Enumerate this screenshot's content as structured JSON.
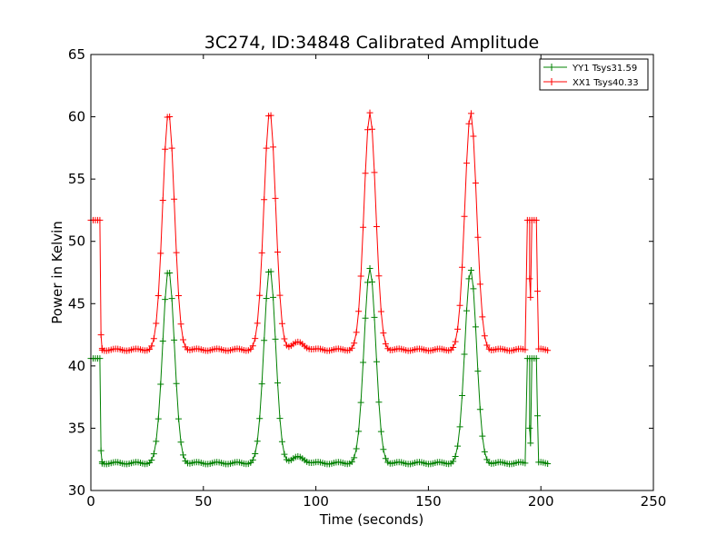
{
  "chart_data": {
    "type": "line",
    "title": "3C274, ID:34848 Calibrated Amplitude",
    "xlabel": "Time (seconds)",
    "ylabel": "Power in Kelvin",
    "xlim": [
      0,
      250
    ],
    "ylim": [
      30,
      65
    ],
    "x_ticks": [
      0,
      50,
      100,
      150,
      200,
      250
    ],
    "x_tick_labels": [
      "0",
      "50",
      "100",
      "150",
      "200",
      "250"
    ],
    "y_ticks": [
      30,
      35,
      40,
      45,
      50,
      55,
      60,
      65
    ],
    "y_tick_labels": [
      "30",
      "35",
      "40",
      "45",
      "50",
      "55",
      "60",
      "65"
    ],
    "grid": false,
    "legend_position": "top-right",
    "marker": "+",
    "sample_interval_s": 1,
    "series": [
      {
        "name": "YY1 Tsys31.59",
        "color": "#008000",
        "profile": {
          "x_start": 0,
          "x_end": 203,
          "cal_level": 40.6,
          "base_level": 32.2,
          "cal_windows": [
            [
              0,
              4
            ],
            [
              194,
              198
            ]
          ],
          "peaks": [
            {
              "center": 34.5,
              "height": 47.8,
              "width": 2.6
            },
            {
              "center": 79.5,
              "height": 47.9,
              "width": 2.6
            },
            {
              "center": 124,
              "height": 47.9,
              "width": 2.6
            },
            {
              "center": 168.8,
              "height": 47.8,
              "width": 2.6
            }
          ],
          "bump": {
            "center": 92,
            "height": 0.45,
            "width": 3
          },
          "transition_points": [
            [
              4.5,
              33.2
            ],
            [
              5,
              32.3
            ],
            [
              195,
              35.0
            ],
            [
              195.4,
              33.8
            ],
            [
              198.5,
              36.0
            ]
          ]
        }
      },
      {
        "name": "XX1 Tsys40.33",
        "color": "#ff0000",
        "profile": {
          "x_start": 0,
          "x_end": 203,
          "cal_level": 51.7,
          "base_level": 41.3,
          "cal_windows": [
            [
              0,
              4
            ],
            [
              194,
              198
            ]
          ],
          "peaks": [
            {
              "center": 34.5,
              "height": 60.4,
              "width": 2.6
            },
            {
              "center": 79.5,
              "height": 60.5,
              "width": 2.6
            },
            {
              "center": 124,
              "height": 60.4,
              "width": 2.6
            },
            {
              "center": 168.8,
              "height": 60.4,
              "width": 2.6
            }
          ],
          "bump": {
            "center": 92,
            "height": 0.55,
            "width": 3
          },
          "transition_points": [
            [
              4.5,
              42.5
            ],
            [
              5,
              41.4
            ],
            [
              195,
              47.0
            ],
            [
              195.4,
              45.5
            ],
            [
              198.5,
              46.0
            ]
          ]
        }
      }
    ]
  }
}
